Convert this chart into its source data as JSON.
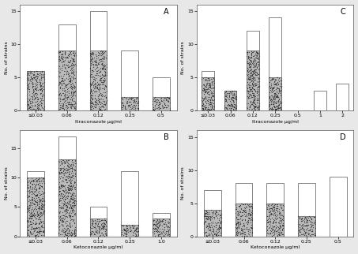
{
  "A": {
    "title": "A",
    "xlabel": "Itraconazole µg/ml",
    "ylabel": "No. of strains",
    "categories": [
      "≤0.03",
      "0.06",
      "0.12",
      "0.25",
      "0.5"
    ],
    "total_bars": [
      6,
      13,
      15,
      9,
      5
    ],
    "shaded_bars": [
      6,
      9,
      9,
      2,
      2
    ],
    "ylim": [
      0,
      16
    ],
    "yticks": [
      0,
      5,
      10,
      15
    ]
  },
  "B": {
    "title": "B",
    "xlabel": "Ketoconazole µg/ml",
    "ylabel": "No. of strains",
    "categories": [
      "≤0.03",
      "0.06",
      "0.12",
      "0.25",
      "1.0"
    ],
    "total_bars": [
      11,
      17,
      5,
      11,
      4
    ],
    "shaded_bars": [
      10,
      13,
      3,
      2,
      3
    ],
    "ylim": [
      0,
      18
    ],
    "yticks": [
      0,
      5,
      10,
      15
    ]
  },
  "C": {
    "title": "C",
    "xlabel": "Itraconazole µg/ml",
    "ylabel": "No. of strains",
    "categories": [
      "≤0.03",
      "0.06",
      "0.12",
      "0.25",
      "0.5",
      "1",
      "2"
    ],
    "total_bars": [
      6,
      3,
      12,
      14,
      0,
      3,
      4
    ],
    "shaded_bars": [
      5,
      3,
      9,
      5,
      0,
      0,
      0
    ],
    "ylim": [
      0,
      16
    ],
    "yticks": [
      0,
      5,
      10,
      15
    ]
  },
  "D": {
    "title": "D",
    "xlabel": "Ketoconazole µg/ml",
    "ylabel": "No. of strains",
    "categories": [
      "≤0.03",
      "0.06",
      "0.12",
      "0.25",
      "0.5"
    ],
    "total_bars": [
      7,
      8,
      8,
      8,
      9
    ],
    "shaded_bars": [
      4,
      5,
      5,
      3,
      0
    ],
    "ylim": [
      0,
      16
    ],
    "yticks": [
      0,
      5,
      10,
      15
    ]
  },
  "shaded_color": "#aaaaaa",
  "open_color": "#ffffff",
  "edge_color": "#555555",
  "bg_color": "#e8e8e8",
  "plot_bg": "#ffffff"
}
